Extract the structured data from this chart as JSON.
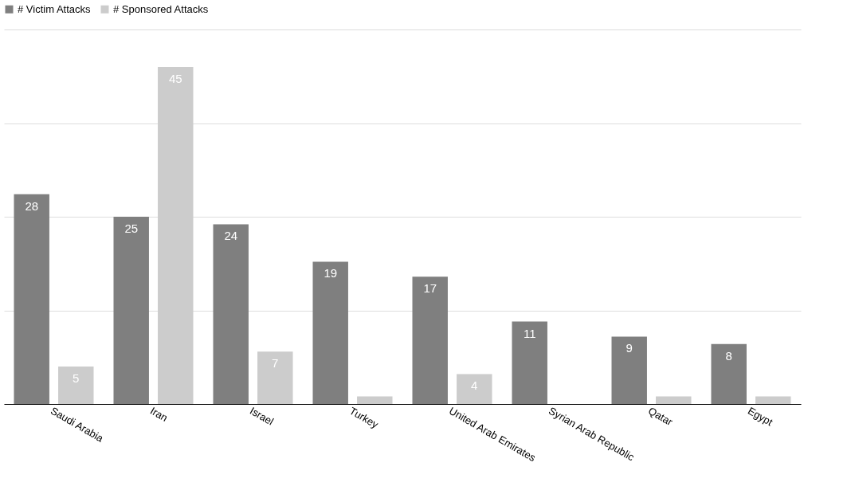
{
  "chart_data": {
    "type": "bar",
    "categories": [
      "Saudi Arabia",
      "Iran",
      "Israel",
      "Turkey",
      "United Arab Emirates",
      "Syrian Arab Republic",
      "Qatar",
      "Egypt"
    ],
    "series": [
      {
        "name": "# Victim Attacks",
        "color": "#7f7f7f",
        "values": [
          28,
          25,
          24,
          19,
          17,
          11,
          9,
          8
        ],
        "value_labels": [
          "28",
          "25",
          "24",
          "19",
          "17",
          "11",
          "9",
          "8"
        ]
      },
      {
        "name": "# Sponsored Attacks",
        "color": "#cccccc",
        "values": [
          5,
          45,
          7,
          1,
          4,
          null,
          1,
          1
        ],
        "value_labels": [
          "5",
          "45",
          "7",
          null,
          "4",
          null,
          null,
          null
        ]
      }
    ],
    "ylim": [
      0,
      50
    ],
    "yticks": [
      {
        "value": 0,
        "label": null
      },
      {
        "value": 12.5,
        "label": null
      },
      {
        "value": 25,
        "label": null
      },
      {
        "value": 37.5,
        "label": null
      },
      {
        "value": 50,
        "label": null
      }
    ],
    "grid": "y",
    "tick_labels": "x",
    "legend": "top"
  }
}
